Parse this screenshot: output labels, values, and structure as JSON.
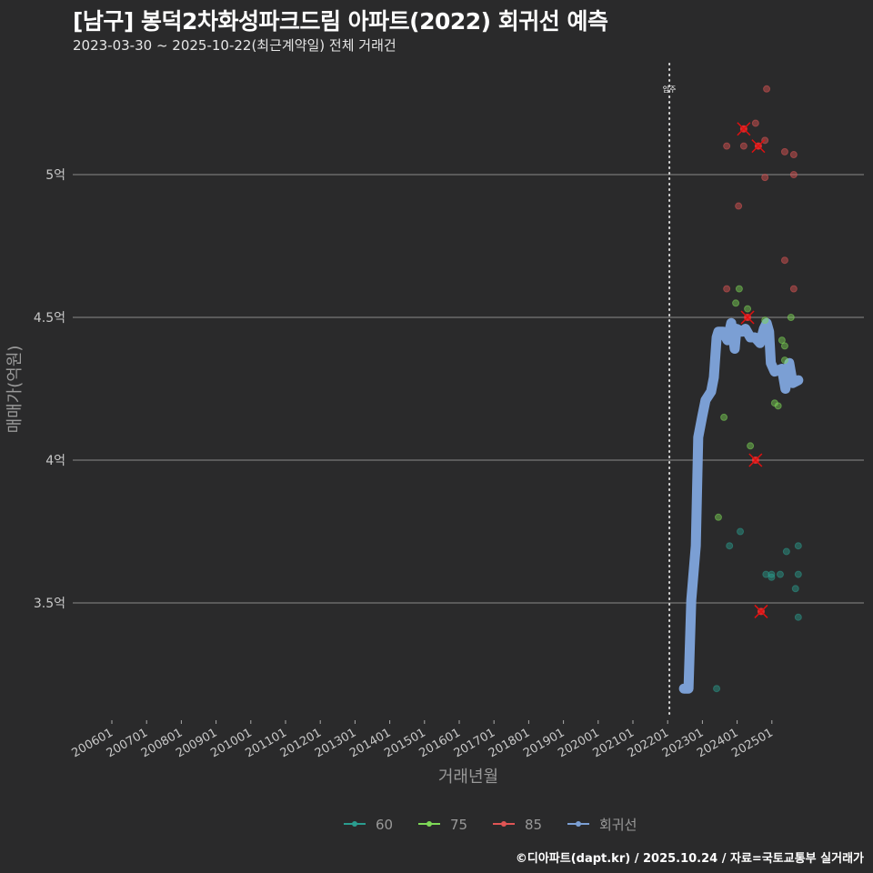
{
  "title": "[남구] 봉덕2차화성파크드림 아파트(2022) 회귀선 예측",
  "subtitle": "2023-03-30 ~ 2025-10-22(최근계약일) 전체 거래건",
  "footer": "©디아파트(dapt.kr) / 2025.10.24 / 자료=국토교통부 실거래가",
  "chart_data": {
    "type": "scatter",
    "xlabel": "거래년월",
    "ylabel": "매매가(억원)",
    "x_unit": "fractional year",
    "xlim": [
      2004.5,
      2027.6
    ],
    "ylim": [
      3.1,
      5.4
    ],
    "grid": "horizontal",
    "y_ticks": [
      {
        "v": 3.5,
        "label": "3.5억"
      },
      {
        "v": 4,
        "label": "4억"
      },
      {
        "v": 4.5,
        "label": "4.5억"
      },
      {
        "v": 5,
        "label": "5억"
      }
    ],
    "x_ticks": [
      "200601",
      "200701",
      "200801",
      "200901",
      "201001",
      "201101",
      "201201",
      "201301",
      "201401",
      "201501",
      "201601",
      "201701",
      "201801",
      "201901",
      "202001",
      "202101",
      "202201",
      "202301",
      "202401",
      "202501"
    ],
    "annotation": {
      "x": 2022.05,
      "label": "입주"
    },
    "legend_position": "bottom",
    "series": [
      {
        "name": "60",
        "color": "#2a9d8f",
        "points": [
          [
            2024.09,
            3.75
          ],
          [
            2023.78,
            3.7
          ],
          [
            2025.76,
            3.7
          ],
          [
            2025.42,
            3.68
          ],
          [
            2024.83,
            3.6
          ],
          [
            2024.99,
            3.6
          ],
          [
            2024.99,
            3.59
          ],
          [
            2025.24,
            3.6
          ],
          [
            2025.76,
            3.6
          ],
          [
            2025.68,
            3.55
          ],
          [
            2025.76,
            3.45
          ],
          [
            2023.41,
            3.2
          ]
        ]
      },
      {
        "name": "75",
        "color": "#7ed957",
        "points": [
          [
            2024.06,
            4.6
          ],
          [
            2023.96,
            4.55
          ],
          [
            2024.3,
            4.53
          ],
          [
            2024.8,
            4.49
          ],
          [
            2025.55,
            4.5
          ],
          [
            2025.29,
            4.42
          ],
          [
            2025.37,
            4.4
          ],
          [
            2025.37,
            4.35
          ],
          [
            2025.08,
            4.2
          ],
          [
            2025.18,
            4.19
          ],
          [
            2023.62,
            4.15
          ],
          [
            2024.38,
            4.05
          ],
          [
            2023.46,
            3.8
          ]
        ]
      },
      {
        "name": "85",
        "color": "#e05555",
        "points": [
          [
            2024.85,
            5.3
          ],
          [
            2024.53,
            5.18
          ],
          [
            2023.7,
            5.1
          ],
          [
            2024.19,
            5.1
          ],
          [
            2024.8,
            5.12
          ],
          [
            2025.37,
            5.08
          ],
          [
            2025.63,
            5.07
          ],
          [
            2025.63,
            5.0
          ],
          [
            2024.8,
            4.99
          ],
          [
            2024.04,
            4.89
          ],
          [
            2025.37,
            4.7
          ],
          [
            2023.7,
            4.6
          ],
          [
            2025.63,
            4.6
          ]
        ]
      },
      {
        "name": "회귀선",
        "color": "#7b9fd4",
        "points": [
          [
            2022.47,
            3.2
          ],
          [
            2022.6,
            3.2
          ],
          [
            2022.68,
            3.51
          ],
          [
            2022.81,
            3.7
          ],
          [
            2022.88,
            4.08
          ],
          [
            2022.99,
            4.15
          ],
          [
            2023.09,
            4.21
          ],
          [
            2023.25,
            4.24
          ],
          [
            2023.33,
            4.29
          ],
          [
            2023.41,
            4.43
          ],
          [
            2023.46,
            4.45
          ],
          [
            2023.59,
            4.45
          ],
          [
            2023.72,
            4.42
          ],
          [
            2023.83,
            4.48
          ],
          [
            2023.93,
            4.39
          ],
          [
            2023.98,
            4.46
          ],
          [
            2024.14,
            4.45
          ],
          [
            2024.24,
            4.46
          ],
          [
            2024.38,
            4.43
          ],
          [
            2024.51,
            4.43
          ],
          [
            2024.66,
            4.41
          ],
          [
            2024.77,
            4.46
          ],
          [
            2024.85,
            4.48
          ],
          [
            2024.92,
            4.45
          ],
          [
            2024.97,
            4.34
          ],
          [
            2025.08,
            4.31
          ],
          [
            2025.29,
            4.32
          ],
          [
            2025.39,
            4.25
          ],
          [
            2025.5,
            4.34
          ],
          [
            2025.6,
            4.27
          ],
          [
            2025.76,
            4.28
          ]
        ]
      }
    ],
    "highlighted": [
      [
        2024.19,
        5.16
      ],
      [
        2024.61,
        5.1
      ],
      [
        2024.3,
        4.5
      ],
      [
        2024.53,
        4.0
      ],
      [
        2024.69,
        3.47
      ]
    ]
  }
}
